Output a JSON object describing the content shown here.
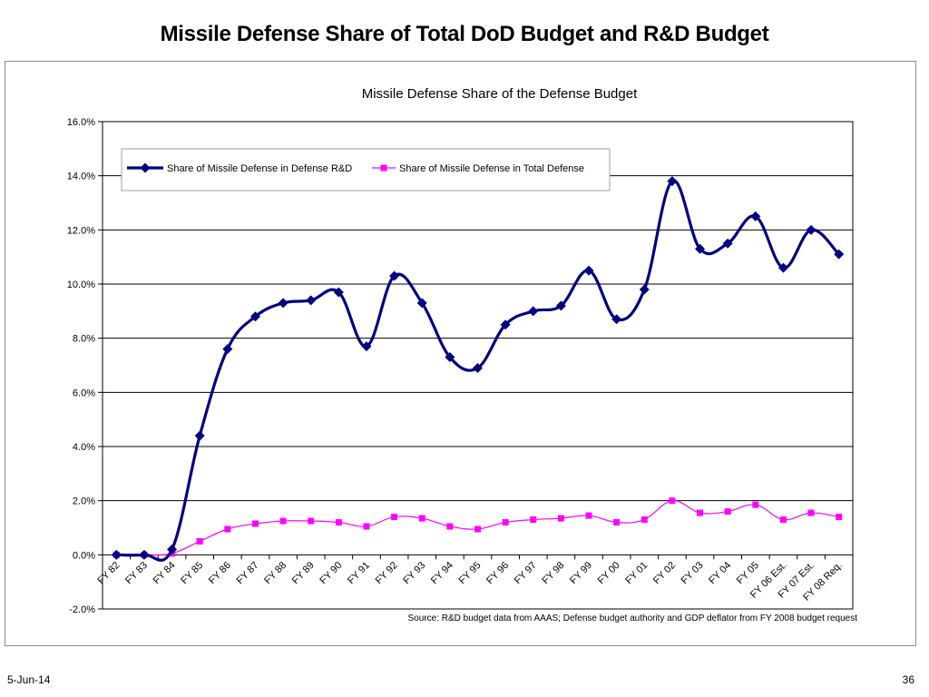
{
  "slide": {
    "title": "Missile Defense Share of Total DoD Budget and R&D Budget",
    "date": "5-Jun-14",
    "page_number": "36"
  },
  "chart_data": {
    "type": "line",
    "title": "Missile Defense Share of the Defense Budget",
    "source": "Source:  R&D budget data from AAAS; Defense budget authority and GDP deflator from FY 2008 budget request",
    "categories": [
      "FY 82",
      "FY 83",
      "FY 84",
      "FY 85",
      "FY 86",
      "FY 87",
      "FY 88",
      "FY 89",
      "FY 90",
      "FY 91",
      "FY 92",
      "FY 93",
      "FY 94",
      "FY 95",
      "FY 96",
      "FY 97",
      "FY 98",
      "FY 99",
      "FY 00",
      "FY 01",
      "FY 02",
      "FY 03",
      "FY 04",
      "FY 05",
      "FY 06 Est.",
      "FY 07 Est.",
      "FY 08 Req."
    ],
    "y_ticks": [
      "-2.0%",
      "0.0%",
      "2.0%",
      "4.0%",
      "6.0%",
      "8.0%",
      "10.0%",
      "12.0%",
      "14.0%",
      "16.0%"
    ],
    "ylim": [
      -2,
      16
    ],
    "ytick_step": 2,
    "grid": "horizontal",
    "legend_position": "top-left",
    "series": [
      {
        "name": "Share of Missile Defense in Defense R&D",
        "color": "#000080",
        "marker": "diamond",
        "values": [
          0.0,
          0.0,
          0.2,
          4.4,
          7.6,
          8.8,
          9.3,
          9.4,
          9.7,
          7.7,
          10.3,
          9.3,
          7.3,
          6.9,
          8.5,
          9.0,
          9.2,
          10.5,
          8.7,
          9.8,
          13.8,
          11.3,
          11.5,
          12.5,
          10.6,
          12.0,
          11.1
        ]
      },
      {
        "name": "Share of Missile Defense in Total Defense",
        "color": "#ff00ff",
        "marker": "square",
        "values": [
          0.0,
          0.0,
          0.05,
          0.5,
          0.95,
          1.15,
          1.25,
          1.25,
          1.2,
          1.05,
          1.4,
          1.35,
          1.05,
          0.95,
          1.2,
          1.3,
          1.35,
          1.45,
          1.2,
          1.3,
          2.0,
          1.55,
          1.6,
          1.85,
          1.3,
          1.55,
          1.4
        ]
      }
    ]
  }
}
